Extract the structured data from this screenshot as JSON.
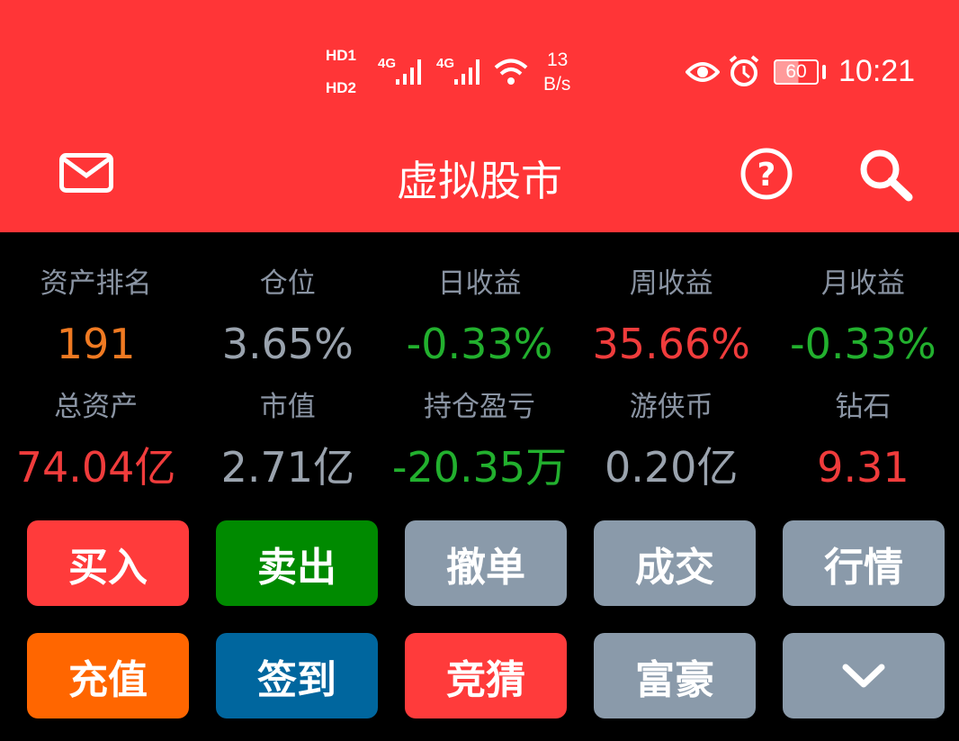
{
  "status_bar": {
    "sim1": "HD1",
    "sim2": "HD2",
    "net1": "4G",
    "net2": "4G",
    "speed_value": "13",
    "speed_unit": "B/s",
    "battery": "60",
    "time": "10:21"
  },
  "header": {
    "title": "虚拟股市",
    "icons": [
      "mail-icon",
      "help-icon",
      "search-icon"
    ]
  },
  "stats": [
    {
      "label": "资产排名",
      "value": "191",
      "color": "#F07A22"
    },
    {
      "label": "仓位",
      "value": "3.65%",
      "color": "#9AA3AE"
    },
    {
      "label": "日收益",
      "value": "-0.33%",
      "color": "#22B02E"
    },
    {
      "label": "周收益",
      "value": "35.66%",
      "color": "#F03C3C"
    },
    {
      "label": "月收益",
      "value": "-0.33%",
      "color": "#22B02E"
    },
    {
      "label": "总资产",
      "value": "74.04亿",
      "color": "#F03C3C"
    },
    {
      "label": "市值",
      "value": "2.71亿",
      "color": "#9AA3AE"
    },
    {
      "label": "持仓盈亏",
      "value": "-20.35万",
      "color": "#22B02E"
    },
    {
      "label": "游侠币",
      "value": "0.20亿",
      "color": "#9AA3AE"
    },
    {
      "label": "钻石",
      "value": "9.31",
      "color": "#F03C3C"
    }
  ],
  "buttons": [
    {
      "label": "买入",
      "color": "#FF3B3B"
    },
    {
      "label": "卖出",
      "color": "#008A00"
    },
    {
      "label": "撤单",
      "color": "#8A9AAA"
    },
    {
      "label": "成交",
      "color": "#8A9AAA"
    },
    {
      "label": "行情",
      "color": "#8A9AAA"
    },
    {
      "label": "充值",
      "color": "#FF6600"
    },
    {
      "label": "签到",
      "color": "#00669E"
    },
    {
      "label": "竞猜",
      "color": "#FF3B3B"
    },
    {
      "label": "富豪",
      "color": "#8A9AAA"
    },
    {
      "label": "",
      "icon": "chevron-down-icon",
      "color": "#8A9AAA"
    }
  ]
}
